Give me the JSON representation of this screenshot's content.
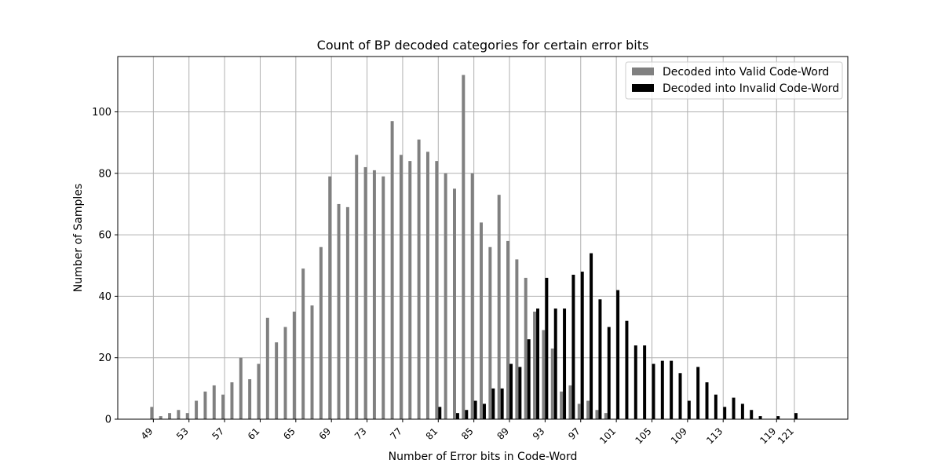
{
  "chart_data": {
    "type": "bar",
    "title": "Count of BP decoded categories for certain error bits",
    "xlabel": "Number of Error bits in Code-Word",
    "ylabel": "Number of Samples",
    "xlim": [
      45,
      127
    ],
    "ylim": [
      0,
      118
    ],
    "grid": true,
    "legend_position": "top-right",
    "xticks": [
      49,
      53,
      57,
      61,
      65,
      69,
      73,
      77,
      81,
      85,
      89,
      93,
      97,
      101,
      105,
      109,
      113,
      119,
      121
    ],
    "yticks": [
      0,
      20,
      40,
      60,
      80,
      100
    ],
    "colors": {
      "valid": "#808080",
      "invalid": "#000000",
      "grid": "#b0b0b0"
    },
    "series": [
      {
        "name": "Decoded into Valid Code-Word",
        "x": [
          49,
          50,
          51,
          52,
          53,
          54,
          55,
          56,
          57,
          58,
          59,
          60,
          61,
          62,
          63,
          64,
          65,
          66,
          67,
          68,
          69,
          70,
          71,
          72,
          73,
          74,
          75,
          76,
          77,
          78,
          79,
          80,
          81,
          82,
          83,
          84,
          85,
          86,
          87,
          88,
          89,
          90,
          91,
          92,
          93,
          94,
          95,
          96,
          97,
          98,
          99,
          100
        ],
        "values": [
          4,
          1,
          2,
          3,
          2,
          6,
          9,
          11,
          8,
          12,
          20,
          13,
          18,
          33,
          25,
          30,
          35,
          49,
          37,
          56,
          79,
          70,
          69,
          86,
          82,
          81,
          79,
          97,
          86,
          84,
          91,
          87,
          84,
          80,
          75,
          112,
          80,
          64,
          56,
          73,
          58,
          52,
          46,
          35,
          29,
          23,
          9,
          11,
          5,
          6,
          3,
          2
        ]
      },
      {
        "name": "Decoded into Invalid Code-Word",
        "x": [
          81,
          82,
          83,
          84,
          85,
          86,
          87,
          88,
          89,
          90,
          91,
          92,
          93,
          94,
          95,
          96,
          97,
          98,
          99,
          100,
          101,
          102,
          103,
          104,
          105,
          106,
          107,
          108,
          109,
          110,
          111,
          112,
          113,
          114,
          115,
          116,
          117,
          118,
          119,
          120,
          121
        ],
        "values": [
          4,
          0,
          2,
          3,
          6,
          5,
          10,
          10,
          18,
          17,
          26,
          36,
          46,
          36,
          36,
          47,
          48,
          54,
          39,
          30,
          42,
          32,
          24,
          24,
          18,
          19,
          19,
          15,
          6,
          17,
          12,
          8,
          4,
          7,
          5,
          3,
          1,
          0,
          1,
          0,
          2
        ]
      }
    ]
  }
}
